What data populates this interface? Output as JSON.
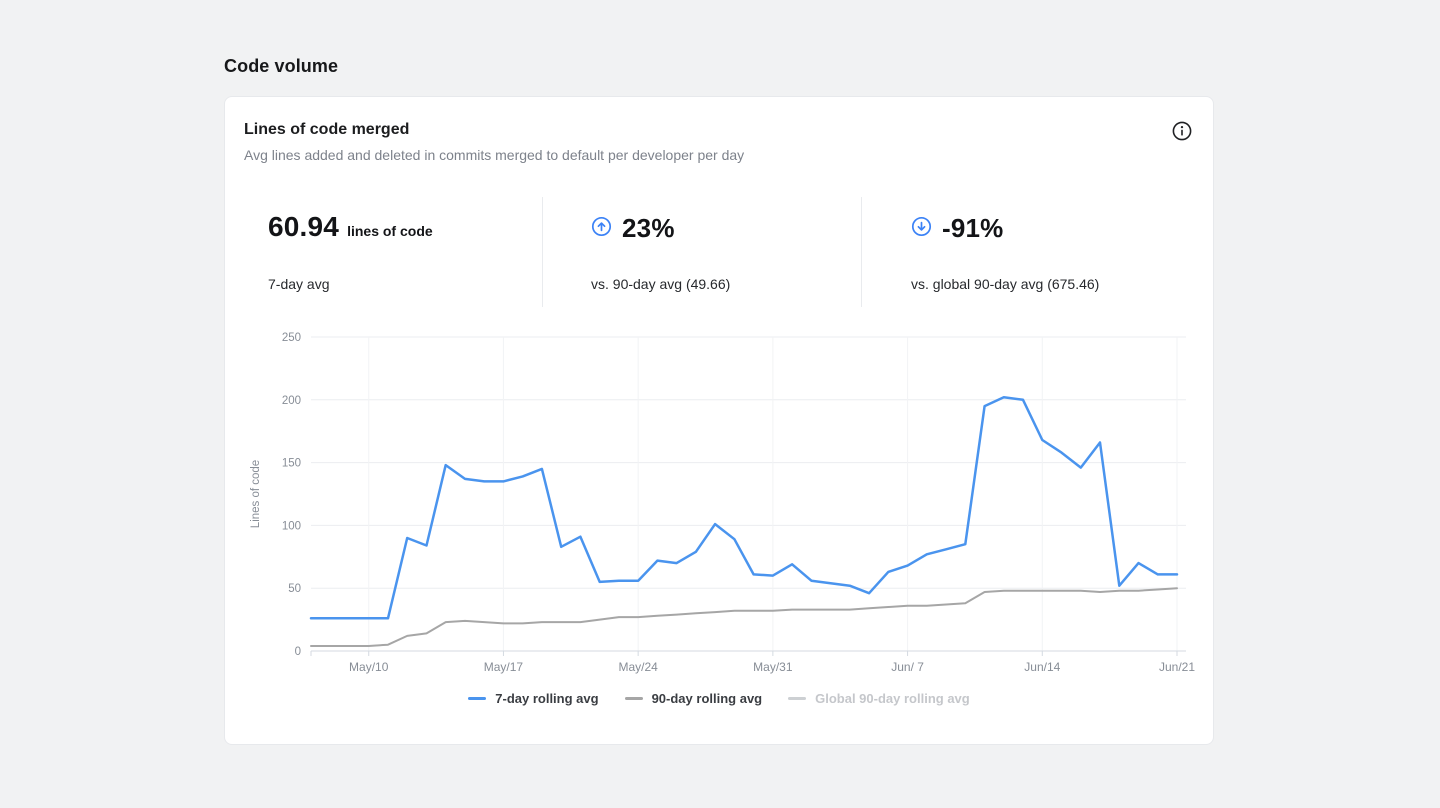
{
  "page": {
    "title": "Code volume"
  },
  "card": {
    "title": "Lines of code merged",
    "subtitle": "Avg lines added and deleted in commits merged to default per developer per day",
    "info_icon": "info-circle-icon",
    "stats": [
      {
        "value": "60.94",
        "unit": "lines of code",
        "caption": "7-day avg"
      },
      {
        "icon": "arrow-up-circle-icon",
        "direction": "up",
        "value": "23%",
        "caption": "vs. 90-day avg (49.66)"
      },
      {
        "icon": "arrow-down-circle-icon",
        "direction": "down",
        "value": "-91%",
        "caption": "vs. global 90-day avg (675.46)"
      }
    ]
  },
  "chart_data": {
    "type": "line",
    "title": "Lines of code merged",
    "ylabel": "Lines of code",
    "ylim": [
      0,
      250
    ],
    "yticks": [
      0,
      50,
      100,
      150,
      200,
      250
    ],
    "grid": true,
    "legend_position": "bottom",
    "x_start_date": "May/7",
    "xtick_labels": [
      "May/10",
      "May/17",
      "May/24",
      "May/31",
      "Jun/ 7",
      "Jun/14",
      "Jun/21"
    ],
    "xtick_indices": [
      3,
      10,
      17,
      24,
      31,
      38,
      45
    ],
    "series": [
      {
        "name": "7-day rolling avg",
        "color": "#4a94ee",
        "visible": true,
        "stroke_width": 2.5,
        "values": [
          26,
          26,
          26,
          26,
          26,
          90,
          84,
          148,
          137,
          135,
          135,
          139,
          145,
          83,
          91,
          55,
          56,
          56,
          72,
          70,
          79,
          101,
          89,
          61,
          60,
          69,
          56,
          54,
          52,
          46,
          63,
          68,
          77,
          81,
          85,
          195,
          202,
          200,
          168,
          158,
          146,
          166,
          52,
          70,
          61,
          61
        ]
      },
      {
        "name": "90-day rolling avg",
        "color": "#a6a6a6",
        "visible": true,
        "stroke_width": 2,
        "values": [
          4,
          4,
          4,
          4,
          5,
          12,
          14,
          23,
          24,
          23,
          22,
          22,
          23,
          23,
          23,
          25,
          27,
          27,
          28,
          29,
          30,
          31,
          32,
          32,
          32,
          33,
          33,
          33,
          33,
          34,
          35,
          36,
          36,
          37,
          38,
          47,
          48,
          48,
          48,
          48,
          48,
          47,
          48,
          48,
          49,
          50
        ]
      },
      {
        "name": "Global 90-day rolling avg",
        "color": "#cdd0d3",
        "visible": false,
        "stroke_width": 2,
        "values": []
      }
    ]
  },
  "colors": {
    "accent_blue": "#3b82f6",
    "line_blue": "#4a94ee",
    "line_gray": "#a6a6a6",
    "disabled_gray": "#c5c7cb",
    "grid_line": "#ebedf0",
    "axis_line": "#d4dae1",
    "tick_text": "#878d96",
    "page_bg": "#f1f2f3",
    "card_bg": "#ffffff"
  }
}
